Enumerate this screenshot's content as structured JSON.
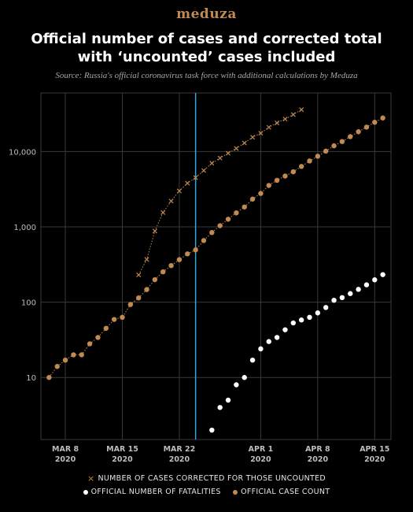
{
  "header": {
    "logo": "meduza",
    "title": "Official number of cases and corrected total with ‘uncounted’ cases included",
    "source": "Source: Russia's official coronavirus task force with additional calculations by Meduza"
  },
  "legend": {
    "corrected": "NUMBER OF CASES CORRECTED FOR THOSE UNCOUNTED",
    "fatalities": "OFFICIAL NUMBER OF FATALITIES",
    "official": "OFFICIAL CASE COUNT"
  },
  "colors": {
    "background": "#000000",
    "official": "#c08a52",
    "corrected": "#c08a52",
    "fatalities": "#ffffff",
    "marker_line": "#3aa6d9",
    "grid": "#3a3a3a"
  },
  "chart_data": {
    "type": "scatter",
    "title": "Official number of cases and corrected total with ‘uncounted’ cases included",
    "xlabel": "",
    "ylabel": "",
    "y_scale": "log",
    "ylim": [
      1.5,
      60000
    ],
    "xlim": [
      "2020-03-05",
      "2020-04-17"
    ],
    "grid": true,
    "legend_position": "bottom",
    "x_ticks": [
      {
        "date": "2020-03-08",
        "line1": "MAR 8",
        "line2": "2020"
      },
      {
        "date": "2020-03-15",
        "line1": "MAR 15",
        "line2": "2020"
      },
      {
        "date": "2020-03-22",
        "line1": "MAR 22",
        "line2": "2020"
      },
      {
        "date": "2020-04-01",
        "line1": "APR 1",
        "line2": "2020"
      },
      {
        "date": "2020-04-08",
        "line1": "APR 8",
        "line2": "2020"
      },
      {
        "date": "2020-04-15",
        "line1": "APR 15",
        "line2": "2020"
      }
    ],
    "y_ticks": [
      {
        "value": 10,
        "label": "10"
      },
      {
        "value": 100,
        "label": "100"
      },
      {
        "value": 1000,
        "label": "1,000"
      },
      {
        "value": 10000,
        "label": "10,000"
      }
    ],
    "vertical_marker": {
      "date": "2020-03-24"
    },
    "series": [
      {
        "name": "OFFICIAL CASE COUNT",
        "marker": "dot",
        "line": "dotted",
        "points": [
          [
            "2020-03-06",
            10
          ],
          [
            "2020-03-07",
            14
          ],
          [
            "2020-03-08",
            17
          ],
          [
            "2020-03-09",
            20
          ],
          [
            "2020-03-10",
            20
          ],
          [
            "2020-03-11",
            28
          ],
          [
            "2020-03-12",
            34
          ],
          [
            "2020-03-13",
            45
          ],
          [
            "2020-03-14",
            59
          ],
          [
            "2020-03-15",
            63
          ],
          [
            "2020-03-16",
            93
          ],
          [
            "2020-03-17",
            114
          ],
          [
            "2020-03-18",
            147
          ],
          [
            "2020-03-19",
            199
          ],
          [
            "2020-03-20",
            253
          ],
          [
            "2020-03-21",
            306
          ],
          [
            "2020-03-22",
            367
          ],
          [
            "2020-03-23",
            438
          ],
          [
            "2020-03-24",
            495
          ],
          [
            "2020-03-25",
            658
          ],
          [
            "2020-03-26",
            840
          ],
          [
            "2020-03-27",
            1036
          ],
          [
            "2020-03-28",
            1264
          ],
          [
            "2020-03-29",
            1534
          ],
          [
            "2020-03-30",
            1836
          ],
          [
            "2020-03-31",
            2337
          ],
          [
            "2020-04-01",
            2777
          ],
          [
            "2020-04-02",
            3548
          ],
          [
            "2020-04-03",
            4149
          ],
          [
            "2020-04-04",
            4731
          ],
          [
            "2020-04-05",
            5389
          ],
          [
            "2020-04-06",
            6343
          ],
          [
            "2020-04-07",
            7497
          ],
          [
            "2020-04-08",
            8672
          ],
          [
            "2020-04-09",
            10131
          ],
          [
            "2020-04-10",
            11917
          ],
          [
            "2020-04-11",
            13584
          ],
          [
            "2020-04-12",
            15770
          ],
          [
            "2020-04-13",
            18328
          ],
          [
            "2020-04-14",
            21102
          ],
          [
            "2020-04-15",
            24490
          ],
          [
            "2020-04-16",
            27938
          ]
        ]
      },
      {
        "name": "NUMBER OF CASES CORRECTED FOR THOSE UNCOUNTED",
        "marker": "x",
        "line": "dotted",
        "points": [
          [
            "2020-03-17",
            230
          ],
          [
            "2020-03-18",
            370
          ],
          [
            "2020-03-19",
            880
          ],
          [
            "2020-03-20",
            1550
          ],
          [
            "2020-03-21",
            2200
          ],
          [
            "2020-03-22",
            3000
          ],
          [
            "2020-03-23",
            3800
          ],
          [
            "2020-03-24",
            4500
          ],
          [
            "2020-03-25",
            5600
          ],
          [
            "2020-03-26",
            7000
          ],
          [
            "2020-03-27",
            8200
          ],
          [
            "2020-03-28",
            9500
          ],
          [
            "2020-03-29",
            11000
          ],
          [
            "2020-03-30",
            13000
          ],
          [
            "2020-03-31",
            15500
          ],
          [
            "2020-04-01",
            17500
          ],
          [
            "2020-04-02",
            21000
          ],
          [
            "2020-04-03",
            24000
          ],
          [
            "2020-04-04",
            27000
          ],
          [
            "2020-04-05",
            31000
          ],
          [
            "2020-04-06",
            36000
          ]
        ]
      },
      {
        "name": "OFFICIAL NUMBER OF FATALITIES",
        "marker": "dot",
        "line": "none",
        "points": [
          [
            "2020-03-26",
            2
          ],
          [
            "2020-03-27",
            4
          ],
          [
            "2020-03-28",
            5
          ],
          [
            "2020-03-29",
            8
          ],
          [
            "2020-03-30",
            10
          ],
          [
            "2020-03-31",
            17
          ],
          [
            "2020-04-01",
            24
          ],
          [
            "2020-04-02",
            30
          ],
          [
            "2020-04-03",
            34
          ],
          [
            "2020-04-04",
            43
          ],
          [
            "2020-04-05",
            53
          ],
          [
            "2020-04-06",
            58
          ],
          [
            "2020-04-07",
            63
          ],
          [
            "2020-04-08",
            72
          ],
          [
            "2020-04-09",
            85
          ],
          [
            "2020-04-10",
            106
          ],
          [
            "2020-04-11",
            115
          ],
          [
            "2020-04-12",
            130
          ],
          [
            "2020-04-13",
            148
          ],
          [
            "2020-04-14",
            170
          ],
          [
            "2020-04-15",
            198
          ],
          [
            "2020-04-16",
            232
          ]
        ]
      }
    ]
  }
}
